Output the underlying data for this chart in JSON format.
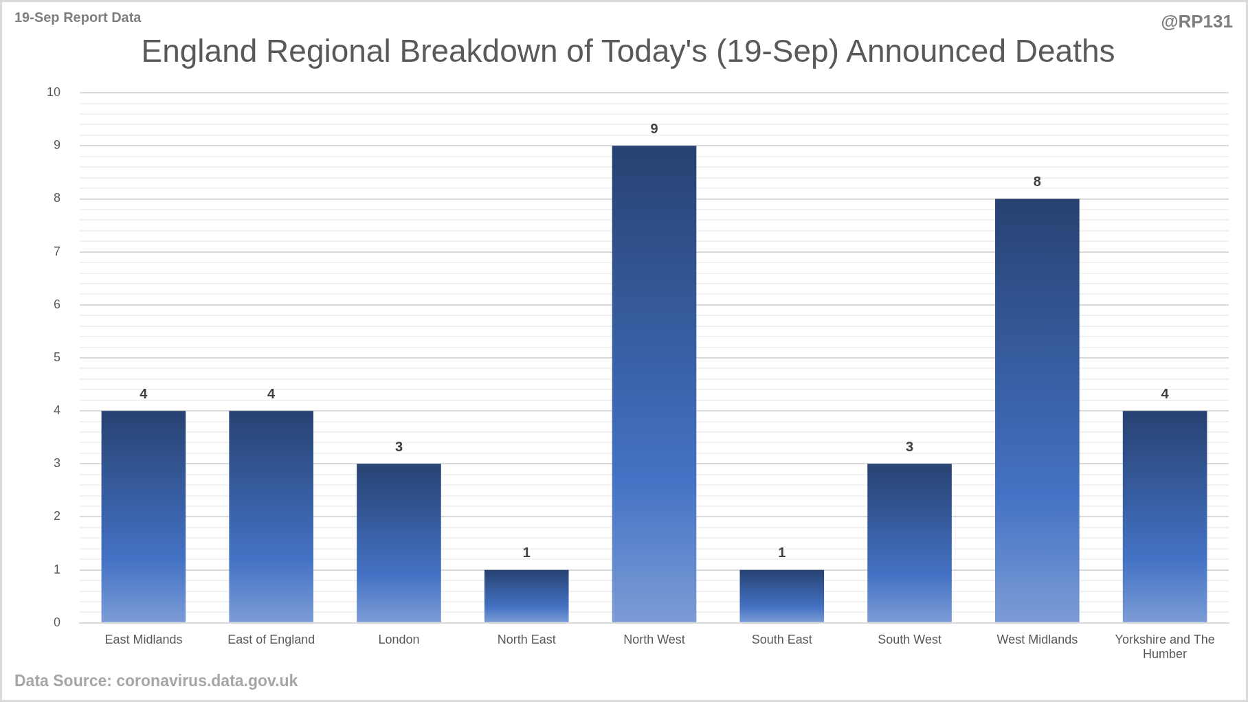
{
  "chart_data": {
    "type": "bar",
    "title": "England Regional Breakdown of Today's (19-Sep) Announced Deaths",
    "categories": [
      "East Midlands",
      "East of England",
      "London",
      "North East",
      "North West",
      "South East",
      "South West",
      "West Midlands",
      "Yorkshire and The Humber"
    ],
    "values": [
      4,
      4,
      3,
      1,
      9,
      1,
      3,
      8,
      4
    ],
    "color": "#4472c4",
    "ylim": [
      0,
      10
    ],
    "yticks": [
      0,
      {
        "value": 0.2,
        "label": null
      },
      {
        "value": 0.4,
        "label": null
      },
      {
        "value": 0.6,
        "label": null
      },
      {
        "value": 0.8,
        "label": null
      },
      1,
      {
        "value": 1.2,
        "label": null
      },
      {
        "value": 1.4,
        "label": null
      },
      {
        "value": 1.6,
        "label": null
      },
      {
        "value": 1.8,
        "label": null
      },
      2,
      {
        "value": 2.2,
        "label": null
      },
      {
        "value": 2.4,
        "label": null
      },
      {
        "value": 2.6,
        "label": null
      },
      {
        "value": 2.8,
        "label": null
      },
      3,
      {
        "value": 3.2,
        "label": null
      },
      {
        "value": 3.4,
        "label": null
      },
      {
        "value": 3.6,
        "label": null
      },
      {
        "value": 3.8,
        "label": null
      },
      4,
      {
        "value": 4.2,
        "label": null
      },
      {
        "value": 4.4,
        "label": null
      },
      {
        "value": 4.6,
        "label": null
      },
      {
        "value": 4.8,
        "label": null
      },
      5,
      {
        "value": 5.2,
        "label": null
      },
      {
        "value": 5.4,
        "label": null
      },
      {
        "value": 5.6,
        "label": null
      },
      {
        "value": 5.8,
        "label": null
      },
      6,
      {
        "value": 6.2,
        "label": null
      },
      {
        "value": 6.4,
        "label": null
      },
      {
        "value": 6.6,
        "label": null
      },
      {
        "value": 6.8,
        "label": null
      },
      7,
      {
        "value": 7.2,
        "label": null
      },
      {
        "value": 7.4,
        "label": null
      },
      {
        "value": 7.6,
        "label": null
      },
      {
        "value": 7.8,
        "label": null
      },
      8,
      {
        "value": 8.2,
        "label": null
      },
      {
        "value": 8.4,
        "label": null
      },
      {
        "value": 8.6,
        "label": null
      },
      {
        "value": 8.8,
        "label": null
      },
      9,
      {
        "value": 9.2,
        "label": null
      },
      {
        "value": 9.4,
        "label": null
      },
      {
        "value": 9.6,
        "label": null
      },
      {
        "value": 9.8,
        "label": null
      },
      10
    ],
    "grid": "y",
    "data_labels": true,
    "annotations": [
      "19-Sep Report Data",
      "@RP131",
      "Data Source: coronavirus.data.gov.uk"
    ]
  }
}
